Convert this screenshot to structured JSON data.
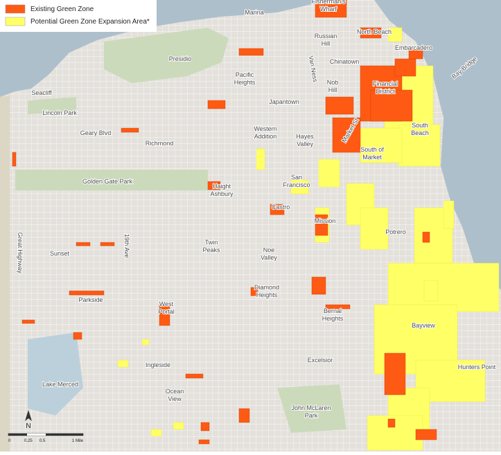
{
  "legend": {
    "items": [
      {
        "label": "Existing Green Zone",
        "color": "#ff5a14"
      },
      {
        "label": "Potential Green Zone Expansion Area*",
        "color": "#ffff66"
      }
    ]
  },
  "map": {
    "labels": [
      {
        "lines": [
          "Marina"
        ]
      },
      {
        "lines": [
          "Fisherman's",
          "Wharf"
        ]
      },
      {
        "lines": [
          "Presidio"
        ]
      },
      {
        "lines": [
          "Russian",
          "Hill"
        ]
      },
      {
        "lines": [
          "North Beach"
        ]
      },
      {
        "lines": [
          "Embarcadero"
        ]
      },
      {
        "lines": [
          "Bay Bridge"
        ]
      },
      {
        "lines": [
          "Seacliff"
        ]
      },
      {
        "lines": [
          "Pacific",
          "Heights"
        ]
      },
      {
        "lines": [
          "Van Ness"
        ]
      },
      {
        "lines": [
          "Chinatown"
        ]
      },
      {
        "lines": [
          "Nob",
          "Hill"
        ]
      },
      {
        "lines": [
          "Financial",
          "District"
        ]
      },
      {
        "lines": [
          "Lincoln Park"
        ]
      },
      {
        "lines": [
          "Japantown"
        ]
      },
      {
        "lines": [
          "Geary Blvd"
        ]
      },
      {
        "lines": [
          "Western",
          "Addition"
        ]
      },
      {
        "lines": [
          "Hayes",
          "Valley"
        ]
      },
      {
        "lines": [
          "Market St"
        ]
      },
      {
        "lines": [
          "South",
          "Beach"
        ]
      },
      {
        "lines": [
          "Richmond"
        ]
      },
      {
        "lines": [
          "South of",
          "Market"
        ]
      },
      {
        "lines": [
          "Golden Gate Park"
        ]
      },
      {
        "lines": [
          "Haight",
          "Ashbury"
        ]
      },
      {
        "lines": [
          "San",
          "Francisco"
        ]
      },
      {
        "lines": [
          "Castro"
        ]
      },
      {
        "lines": [
          "Mission"
        ]
      },
      {
        "lines": [
          "Potrero"
        ]
      },
      {
        "lines": [
          "Great Highway"
        ]
      },
      {
        "lines": [
          "19th Ave"
        ]
      },
      {
        "lines": [
          "Sunset"
        ]
      },
      {
        "lines": [
          "Twin",
          "Peaks"
        ]
      },
      {
        "lines": [
          "Noe",
          "Valley"
        ]
      },
      {
        "lines": [
          "Diamond",
          "Heights"
        ]
      },
      {
        "lines": [
          "Parkside"
        ]
      },
      {
        "lines": [
          "West",
          "Portal"
        ]
      },
      {
        "lines": [
          "Bernal",
          "Heights"
        ]
      },
      {
        "lines": [
          "Bayview"
        ]
      },
      {
        "lines": [
          "Excelsior"
        ]
      },
      {
        "lines": [
          "Hunters Point"
        ]
      },
      {
        "lines": [
          "Ingleside"
        ]
      },
      {
        "lines": [
          "Ocean",
          "View"
        ]
      },
      {
        "lines": [
          "Lake Merced"
        ]
      },
      {
        "lines": [
          "John McLaren",
          "Park"
        ]
      }
    ]
  },
  "north_arrow": "N",
  "scale_bar": {
    "labels": [
      "0",
      "0.25",
      "0.5",
      "1 Mile"
    ]
  }
}
